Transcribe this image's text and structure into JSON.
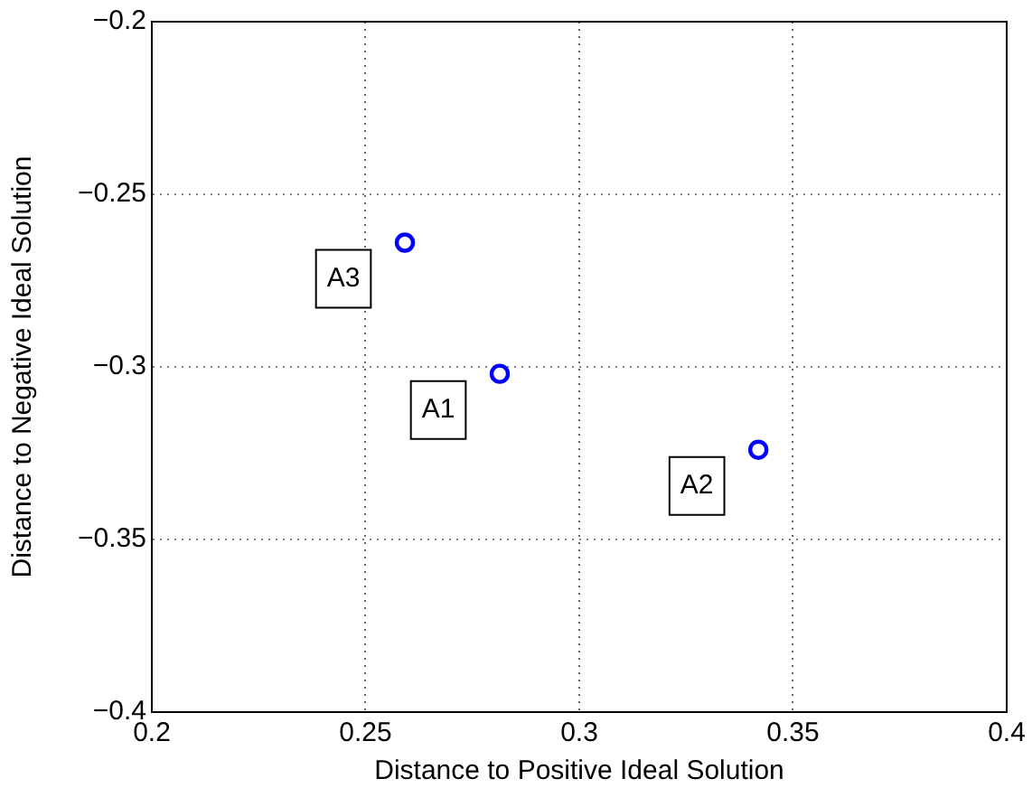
{
  "chart_data": {
    "type": "scatter",
    "xlabel": "Distance to Positive Ideal Solution",
    "ylabel": "Distance to Negative Ideal Solution",
    "x": [
      0.2814,
      0.3419,
      0.2592
    ],
    "values": [
      -0.302,
      -0.324,
      -0.264
    ],
    "color": "#0000ff",
    "marker": "circle",
    "xlim": [
      0.2,
      0.4
    ],
    "xticks": [
      0.2,
      0.25,
      0.3,
      0.35,
      0.4
    ],
    "ylim": [
      -0.4,
      -0.2
    ],
    "yticks": [
      -0.4,
      -0.35,
      -0.3,
      -0.25,
      -0.2
    ],
    "grid": true,
    "legend": false,
    "annotations": [
      {
        "text": "A1",
        "x": 0.2814,
        "y": -0.302
      },
      {
        "text": "A2",
        "x": 0.3419,
        "y": -0.324
      },
      {
        "text": "A3",
        "x": 0.2592,
        "y": -0.264
      }
    ]
  }
}
